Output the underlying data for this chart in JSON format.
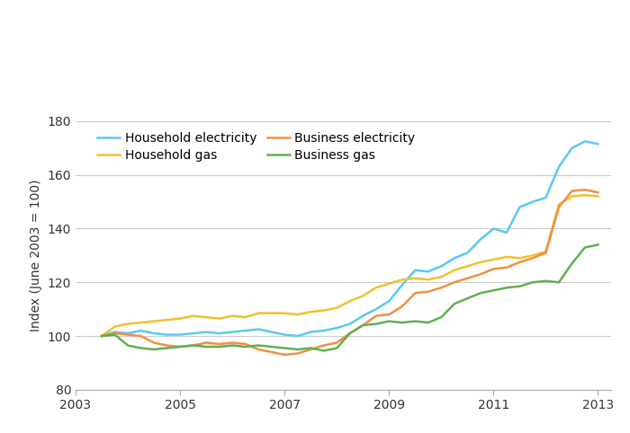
{
  "ylabel": "Index (June 2003 = 100)",
  "ylim": [
    80,
    180
  ],
  "yticks": [
    80,
    100,
    120,
    140,
    160,
    180
  ],
  "xlim": [
    2003.0,
    2013.25
  ],
  "xticks": [
    2003,
    2005,
    2007,
    2009,
    2011,
    2013
  ],
  "background_color": "#ffffff",
  "grid_color": "#cccccc",
  "series_order": [
    "household_electricity",
    "household_gas",
    "business_electricity",
    "business_gas"
  ],
  "legend_order": [
    "household_electricity",
    "household_gas",
    "business_electricity",
    "business_gas"
  ],
  "series": {
    "household_electricity": {
      "label": "Household electricity",
      "color": "#5bc8f0",
      "data": [
        [
          2003.5,
          100.0
        ],
        [
          2003.75,
          101.5
        ],
        [
          2004.0,
          101.0
        ],
        [
          2004.25,
          102.0
        ],
        [
          2004.5,
          101.0
        ],
        [
          2004.75,
          100.5
        ],
        [
          2005.0,
          100.5
        ],
        [
          2005.25,
          101.0
        ],
        [
          2005.5,
          101.5
        ],
        [
          2005.75,
          101.0
        ],
        [
          2006.0,
          101.5
        ],
        [
          2006.25,
          102.0
        ],
        [
          2006.5,
          102.5
        ],
        [
          2006.75,
          101.5
        ],
        [
          2007.0,
          100.5
        ],
        [
          2007.25,
          100.0
        ],
        [
          2007.5,
          101.5
        ],
        [
          2007.75,
          102.0
        ],
        [
          2008.0,
          103.0
        ],
        [
          2008.25,
          104.5
        ],
        [
          2008.5,
          107.5
        ],
        [
          2008.75,
          110.0
        ],
        [
          2009.0,
          113.0
        ],
        [
          2009.25,
          119.0
        ],
        [
          2009.5,
          124.5
        ],
        [
          2009.75,
          124.0
        ],
        [
          2010.0,
          126.0
        ],
        [
          2010.25,
          129.0
        ],
        [
          2010.5,
          131.0
        ],
        [
          2010.75,
          136.0
        ],
        [
          2011.0,
          140.0
        ],
        [
          2011.25,
          138.5
        ],
        [
          2011.5,
          148.0
        ],
        [
          2011.75,
          150.0
        ],
        [
          2012.0,
          151.5
        ],
        [
          2012.25,
          163.0
        ],
        [
          2012.5,
          170.0
        ],
        [
          2012.75,
          172.5
        ],
        [
          2013.0,
          171.5
        ]
      ]
    },
    "household_gas": {
      "label": "Household gas",
      "color": "#f0c030",
      "data": [
        [
          2003.5,
          100.0
        ],
        [
          2003.75,
          103.5
        ],
        [
          2004.0,
          104.5
        ],
        [
          2004.25,
          105.0
        ],
        [
          2004.5,
          105.5
        ],
        [
          2004.75,
          106.0
        ],
        [
          2005.0,
          106.5
        ],
        [
          2005.25,
          107.5
        ],
        [
          2005.5,
          107.0
        ],
        [
          2005.75,
          106.5
        ],
        [
          2006.0,
          107.5
        ],
        [
          2006.25,
          107.0
        ],
        [
          2006.5,
          108.5
        ],
        [
          2006.75,
          108.5
        ],
        [
          2007.0,
          108.5
        ],
        [
          2007.25,
          108.0
        ],
        [
          2007.5,
          109.0
        ],
        [
          2007.75,
          109.5
        ],
        [
          2008.0,
          110.5
        ],
        [
          2008.25,
          113.0
        ],
        [
          2008.5,
          115.0
        ],
        [
          2008.75,
          118.0
        ],
        [
          2009.0,
          119.5
        ],
        [
          2009.25,
          121.0
        ],
        [
          2009.5,
          121.5
        ],
        [
          2009.75,
          121.0
        ],
        [
          2010.0,
          122.0
        ],
        [
          2010.25,
          124.5
        ],
        [
          2010.5,
          126.0
        ],
        [
          2010.75,
          127.5
        ],
        [
          2011.0,
          128.5
        ],
        [
          2011.25,
          129.5
        ],
        [
          2011.5,
          129.0
        ],
        [
          2011.75,
          130.0
        ],
        [
          2012.0,
          131.5
        ],
        [
          2012.25,
          149.0
        ],
        [
          2012.5,
          152.0
        ],
        [
          2012.75,
          152.5
        ],
        [
          2013.0,
          152.0
        ]
      ]
    },
    "business_electricity": {
      "label": "Business electricity",
      "color": "#f09040",
      "data": [
        [
          2003.5,
          100.0
        ],
        [
          2003.75,
          101.0
        ],
        [
          2004.0,
          100.5
        ],
        [
          2004.25,
          100.0
        ],
        [
          2004.5,
          97.5
        ],
        [
          2004.75,
          96.5
        ],
        [
          2005.0,
          96.0
        ],
        [
          2005.25,
          96.5
        ],
        [
          2005.5,
          97.5
        ],
        [
          2005.75,
          97.0
        ],
        [
          2006.0,
          97.5
        ],
        [
          2006.25,
          97.0
        ],
        [
          2006.5,
          95.0
        ],
        [
          2006.75,
          94.0
        ],
        [
          2007.0,
          93.0
        ],
        [
          2007.25,
          93.5
        ],
        [
          2007.5,
          95.0
        ],
        [
          2007.75,
          96.5
        ],
        [
          2008.0,
          97.5
        ],
        [
          2008.25,
          101.0
        ],
        [
          2008.5,
          104.0
        ],
        [
          2008.75,
          107.5
        ],
        [
          2009.0,
          108.0
        ],
        [
          2009.25,
          111.0
        ],
        [
          2009.5,
          116.0
        ],
        [
          2009.75,
          116.5
        ],
        [
          2010.0,
          118.0
        ],
        [
          2010.25,
          120.0
        ],
        [
          2010.5,
          121.5
        ],
        [
          2010.75,
          123.0
        ],
        [
          2011.0,
          125.0
        ],
        [
          2011.25,
          125.5
        ],
        [
          2011.5,
          127.5
        ],
        [
          2011.75,
          129.0
        ],
        [
          2012.0,
          131.0
        ],
        [
          2012.25,
          148.0
        ],
        [
          2012.5,
          154.0
        ],
        [
          2012.75,
          154.5
        ],
        [
          2013.0,
          153.5
        ]
      ]
    },
    "business_gas": {
      "label": "Business gas",
      "color": "#60b050",
      "data": [
        [
          2003.5,
          100.0
        ],
        [
          2003.75,
          100.5
        ],
        [
          2004.0,
          96.5
        ],
        [
          2004.25,
          95.5
        ],
        [
          2004.5,
          95.0
        ],
        [
          2004.75,
          95.5
        ],
        [
          2005.0,
          96.0
        ],
        [
          2005.25,
          96.5
        ],
        [
          2005.5,
          96.0
        ],
        [
          2005.75,
          96.0
        ],
        [
          2006.0,
          96.5
        ],
        [
          2006.25,
          96.0
        ],
        [
          2006.5,
          96.5
        ],
        [
          2006.75,
          96.0
        ],
        [
          2007.0,
          95.5
        ],
        [
          2007.25,
          95.0
        ],
        [
          2007.5,
          95.5
        ],
        [
          2007.75,
          94.5
        ],
        [
          2008.0,
          95.5
        ],
        [
          2008.25,
          101.0
        ],
        [
          2008.5,
          104.0
        ],
        [
          2008.75,
          104.5
        ],
        [
          2009.0,
          105.5
        ],
        [
          2009.25,
          105.0
        ],
        [
          2009.5,
          105.5
        ],
        [
          2009.75,
          105.0
        ],
        [
          2010.0,
          107.0
        ],
        [
          2010.25,
          112.0
        ],
        [
          2010.5,
          114.0
        ],
        [
          2010.75,
          116.0
        ],
        [
          2011.0,
          117.0
        ],
        [
          2011.25,
          118.0
        ],
        [
          2011.5,
          118.5
        ],
        [
          2011.75,
          120.0
        ],
        [
          2012.0,
          120.5
        ],
        [
          2012.25,
          120.0
        ],
        [
          2012.5,
          127.0
        ],
        [
          2012.75,
          133.0
        ],
        [
          2013.0,
          134.0
        ]
      ]
    }
  },
  "legend": {
    "ncol": 2,
    "fontsize": 10
  }
}
